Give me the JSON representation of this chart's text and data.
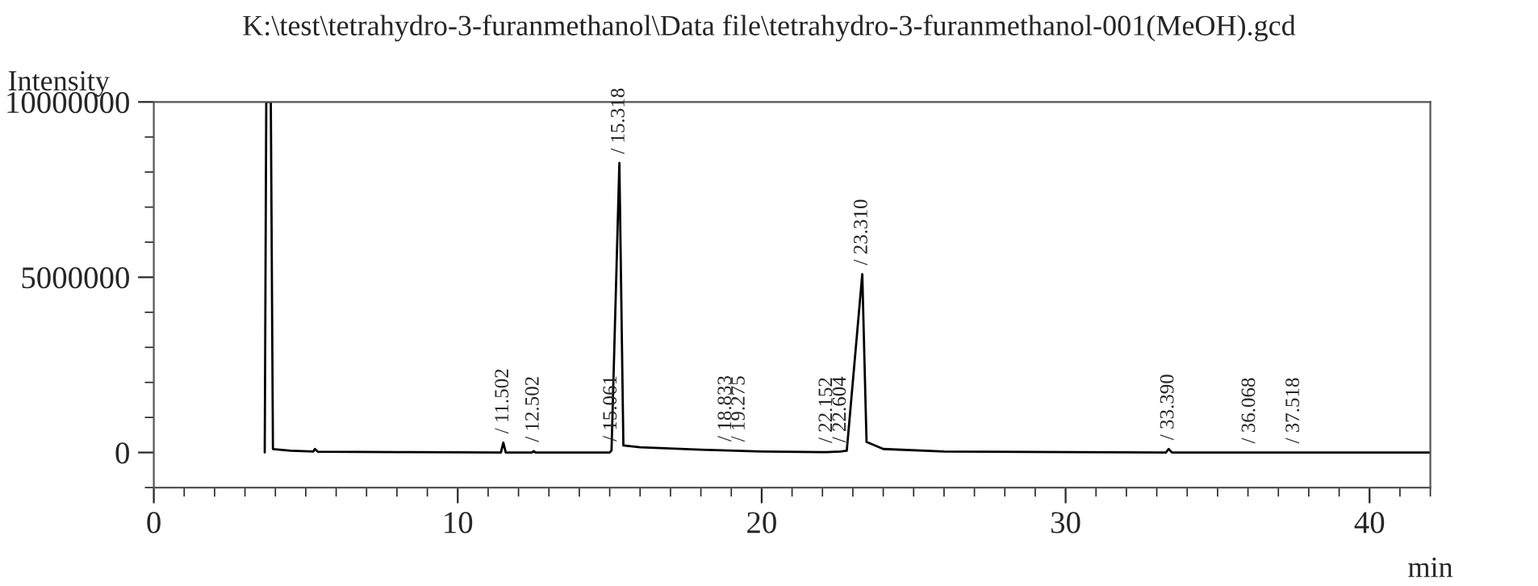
{
  "chart_data": {
    "type": "line",
    "title": "K:\\test\\tetrahydro-3-furanmethanol\\Data file\\tetrahydro-3-furanmethanol-001(MeOH).gcd",
    "xlabel": "min",
    "ylabel": "Intensity",
    "series": [
      {
        "color": "#000000",
        "x": [
          3.65,
          3.7,
          3.85,
          3.92,
          4.5,
          5.25,
          5.3,
          5.4,
          8.0,
          11.42,
          11.5,
          11.58,
          12.45,
          12.5,
          12.56,
          15.0,
          15.06,
          15.318,
          15.45,
          16.0,
          18.0,
          20.0,
          22.15,
          22.6,
          22.8,
          23.31,
          23.45,
          24.0,
          26.0,
          33.3,
          33.39,
          33.5,
          36.068,
          37.518,
          42.0
        ],
        "values": [
          0,
          10000000,
          10000000,
          100000,
          50000,
          30000,
          100000,
          20000,
          10000,
          0,
          280000,
          0,
          0,
          40000,
          0,
          0,
          60000,
          8260000,
          200000,
          150000,
          80000,
          30000,
          10000,
          30000,
          50000,
          5090000,
          300000,
          100000,
          30000,
          0,
          100000,
          0,
          0,
          0,
          0
        ]
      }
    ],
    "annotations": [
      {
        "text": "/ 11.502",
        "x": 11.502,
        "y": 280000
      },
      {
        "text": "/ 12.502",
        "x": 12.502,
        "y": 40000
      },
      {
        "text": "/ 15.061",
        "x": 15.061,
        "y": 60000
      },
      {
        "text": "/ 15.318",
        "x": 15.318,
        "y": 8260000
      },
      {
        "text": "/ 18.833",
        "x": 18.833,
        "y": 60000
      },
      {
        "text": "/ 19.275",
        "x": 19.275,
        "y": 50000
      },
      {
        "text": "/ 22.152",
        "x": 22.152,
        "y": 10000
      },
      {
        "text": "/ 22.604",
        "x": 22.604,
        "y": 30000
      },
      {
        "text": "/ 23.310",
        "x": 23.31,
        "y": 5090000
      },
      {
        "text": "/ 33.390",
        "x": 33.39,
        "y": 100000
      },
      {
        "text": "/ 36.068",
        "x": 36.068,
        "y": 0
      },
      {
        "text": "/ 37.518",
        "x": 37.518,
        "y": 0
      }
    ],
    "xlim": [
      0,
      42
    ],
    "ylim": [
      -1000000,
      10000000
    ],
    "xticks": [
      0,
      {
        "value": 1,
        "label": null
      },
      {
        "value": 2,
        "label": null
      },
      {
        "value": 3,
        "label": null
      },
      {
        "value": 4,
        "label": null
      },
      {
        "value": 5,
        "label": null
      },
      {
        "value": 6,
        "label": null
      },
      {
        "value": 7,
        "label": null
      },
      {
        "value": 8,
        "label": null
      },
      {
        "value": 9,
        "label": null
      },
      10,
      {
        "value": 11,
        "label": null
      },
      {
        "value": 12,
        "label": null
      },
      {
        "value": 13,
        "label": null
      },
      {
        "value": 14,
        "label": null
      },
      {
        "value": 15,
        "label": null
      },
      {
        "value": 16,
        "label": null
      },
      {
        "value": 17,
        "label": null
      },
      {
        "value": 18,
        "label": null
      },
      {
        "value": 19,
        "label": null
      },
      20,
      {
        "value": 21,
        "label": null
      },
      {
        "value": 22,
        "label": null
      },
      {
        "value": 23,
        "label": null
      },
      {
        "value": 24,
        "label": null
      },
      {
        "value": 25,
        "label": null
      },
      {
        "value": 26,
        "label": null
      },
      {
        "value": 27,
        "label": null
      },
      {
        "value": 28,
        "label": null
      },
      {
        "value": 29,
        "label": null
      },
      30,
      {
        "value": 31,
        "label": null
      },
      {
        "value": 32,
        "label": null
      },
      {
        "value": 33,
        "label": null
      },
      {
        "value": 34,
        "label": null
      },
      {
        "value": 35,
        "label": null
      },
      {
        "value": 36,
        "label": null
      },
      {
        "value": 37,
        "label": null
      },
      {
        "value": 38,
        "label": null
      },
      {
        "value": 39,
        "label": null
      },
      40,
      {
        "value": 41,
        "label": null
      },
      {
        "value": 42,
        "label": null
      }
    ],
    "yticks": [
      {
        "value": -1000000,
        "label": null
      },
      0,
      {
        "value": 1000000,
        "label": null
      },
      {
        "value": 2000000,
        "label": null
      },
      {
        "value": 3000000,
        "label": null
      },
      {
        "value": 4000000,
        "label": null
      },
      5000000,
      {
        "value": 6000000,
        "label": null
      },
      {
        "value": 7000000,
        "label": null
      },
      {
        "value": 8000000,
        "label": null
      },
      {
        "value": 9000000,
        "label": null
      },
      10000000
    ],
    "grid": false,
    "marker": "none",
    "line_style": "solid"
  }
}
